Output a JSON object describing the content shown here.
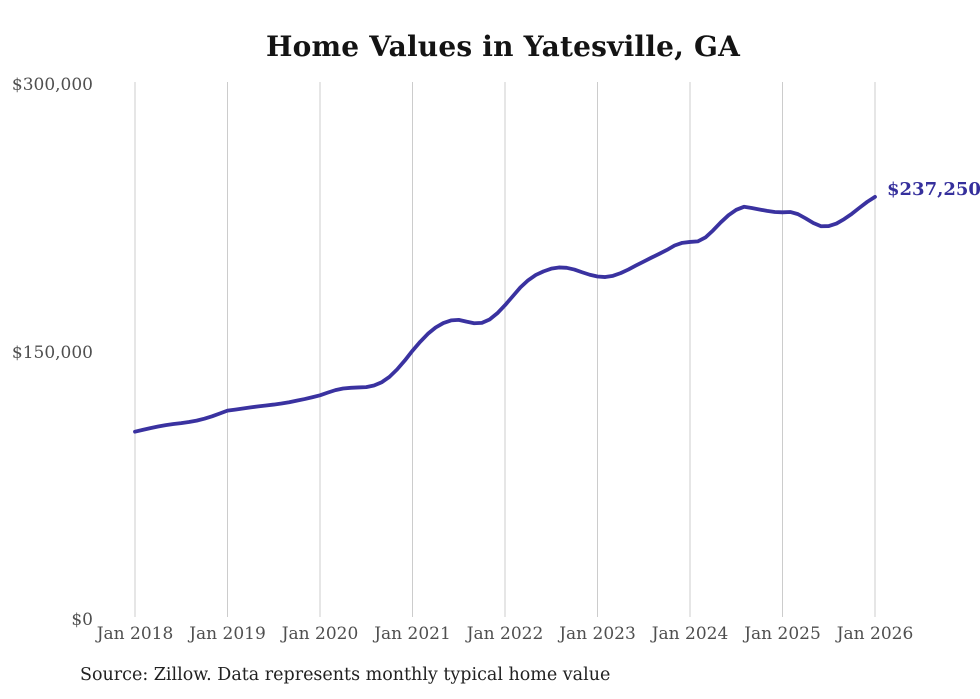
{
  "title": "Home Values in Yatesville, GA",
  "source_note": "Source: Zillow. Data represents monthly typical home value",
  "colors": {
    "line": "#3a32a0",
    "grid": "#cccccc",
    "axis_text": "#4f4f4f",
    "title_text": "#141414",
    "source_text": "#212121",
    "annotation_text": "#352f9c",
    "background": "#ffffff"
  },
  "chart_data": {
    "type": "line",
    "title": "Home Values in Yatesville, GA",
    "xlabel": "",
    "ylabel": "",
    "ylim": [
      0,
      300000
    ],
    "grid": "vertical-year-gridlines-only",
    "legend": "none",
    "frequency": "monthly",
    "x_start": "Jan 2018",
    "x_end": "Jan 2026",
    "end_label": "$237,250",
    "end_value": 237250,
    "y_ticks": [
      {
        "label": "$0",
        "value": 0
      },
      {
        "label": "$150,000",
        "value": 150000
      },
      {
        "label": "$300,000",
        "value": 300000
      }
    ],
    "x_ticks": [
      {
        "label": "Jan 2018",
        "month_index": 0
      },
      {
        "label": "Jan 2019",
        "month_index": 12
      },
      {
        "label": "Jan 2020",
        "month_index": 24
      },
      {
        "label": "Jan 2021",
        "month_index": 36
      },
      {
        "label": "Jan 2022",
        "month_index": 48
      },
      {
        "label": "Jan 2023",
        "month_index": 60
      },
      {
        "label": "Jan 2024",
        "month_index": 72
      },
      {
        "label": "Jan 2025",
        "month_index": 84
      },
      {
        "label": "Jan 2026",
        "month_index": 96
      }
    ],
    "series": [
      {
        "name": "Typical home value",
        "values": [
          105600,
          106600,
          107600,
          108500,
          109300,
          109900,
          110400,
          111000,
          111800,
          112900,
          114200,
          115800,
          117400,
          118000,
          118600,
          119200,
          119800,
          120300,
          120800,
          121400,
          122100,
          123000,
          123900,
          124900,
          126000,
          127500,
          128900,
          129800,
          130200,
          130400,
          130600,
          131500,
          133300,
          136300,
          140500,
          145500,
          151000,
          156000,
          160500,
          164000,
          166500,
          168000,
          168300,
          167300,
          166400,
          166600,
          168500,
          172000,
          176500,
          181500,
          186500,
          190500,
          193500,
          195500,
          197000,
          197700,
          197500,
          196500,
          195000,
          193600,
          192600,
          192300,
          193000,
          194500,
          196500,
          198800,
          201000,
          203200,
          205300,
          207500,
          210000,
          211500,
          212000,
          212300,
          214500,
          218500,
          223000,
          227000,
          230000,
          231700,
          231000,
          230200,
          229400,
          228800,
          228600,
          228800,
          227600,
          225200,
          222600,
          220800,
          220900,
          222300,
          224800,
          227800,
          231200,
          234500,
          237250
        ]
      }
    ]
  }
}
